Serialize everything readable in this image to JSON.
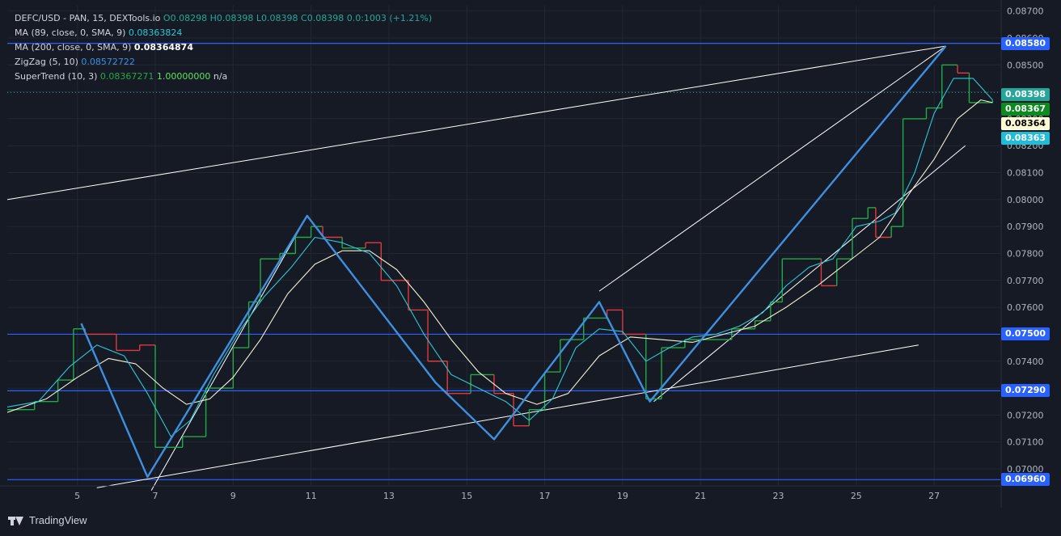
{
  "legend": {
    "symbol": "DEFC/USD - PAN, 15, DEXTools.io",
    "ohlc": {
      "o_label": "O",
      "o": "0.08298",
      "h_label": "H",
      "h": "0.08398",
      "l_label": "L",
      "l": "0.08398",
      "c_label": "C",
      "c": "0.08398",
      "change": "0.0:1003 (+1.21%)"
    },
    "ma89": {
      "label": "MA (89, close, 0, SMA, 9)",
      "value": "0.08363824"
    },
    "ma200": {
      "label": "MA (200, close, 0, SMA, 9)",
      "value": "0.08364874"
    },
    "zigzag": {
      "label": "ZigZag (5, 10)",
      "value": "0.08572722"
    },
    "supertrend": {
      "label": "SuperTrend (10, 3)",
      "value1": "0.08367271",
      "value2": "1.00000000",
      "value3": "n/a"
    }
  },
  "brand": {
    "name": "TradingView"
  },
  "price_tags": [
    {
      "text": "0.08580",
      "price": 0.0858,
      "bg": "#2962ff",
      "fg": "#ffffff"
    },
    {
      "text": "0.08398",
      "price": 0.08398,
      "bg": "#26a69a",
      "fg": "#ffffff"
    },
    {
      "text": "0.08367",
      "price": 0.08367,
      "bg": "#0b8a1f",
      "fg": "#ffffff"
    },
    {
      "text": "0.08364",
      "price": 0.08364,
      "bg": "#fffbd4",
      "fg": "#000000"
    },
    {
      "text": "0.08363",
      "price": 0.08363,
      "bg": "#22bcd6",
      "fg": "#ffffff"
    },
    {
      "text": "0.07500",
      "price": 0.075,
      "bg": "#2962ff",
      "fg": "#ffffff"
    },
    {
      "text": "0.07290",
      "price": 0.0729,
      "bg": "#2962ff",
      "fg": "#ffffff"
    },
    {
      "text": "0.06960",
      "price": 0.0696,
      "bg": "#2962ff",
      "fg": "#ffffff"
    }
  ],
  "colors": {
    "up": "#22ab45",
    "down": "#e03a3e",
    "ma89": "#2ec7d6",
    "ma200": "#f4f1d6",
    "zigzag": "#3d8fe0",
    "hline": "#2962ff",
    "trend": "#ffffff",
    "grid": "#232733",
    "axis_text": "#b2b5be"
  },
  "chart_data": {
    "type": "line",
    "ylim": [
      0.0694,
      0.0872
    ],
    "xlim": [
      3.2,
      28.7
    ],
    "y_ticks": [
      "0.08700",
      "0.08600",
      "0.08500",
      "0.08400",
      "0.08300",
      "0.08200",
      "0.08100",
      "0.08000",
      "0.07900",
      "0.07800",
      "0.07700",
      "0.07600",
      "0.07500",
      "0.07400",
      "0.07300",
      "0.07200",
      "0.07100",
      "0.07000"
    ],
    "x_ticks": [
      5,
      7,
      9,
      11,
      13,
      15,
      17,
      19,
      21,
      23,
      25,
      27
    ],
    "horizontal_levels": [
      0.0858,
      0.075,
      0.0729,
      0.0696
    ],
    "last_price": 0.08398,
    "supertrend_steps": [
      {
        "x": 3.2,
        "y": 0.0722,
        "trend": "up"
      },
      {
        "x": 3.9,
        "y": 0.0725,
        "trend": "up"
      },
      {
        "x": 4.5,
        "y": 0.0733,
        "trend": "up"
      },
      {
        "x": 4.9,
        "y": 0.0752,
        "trend": "up"
      },
      {
        "x": 5.2,
        "y": 0.075,
        "trend": "down"
      },
      {
        "x": 6.0,
        "y": 0.0744,
        "trend": "down"
      },
      {
        "x": 6.6,
        "y": 0.0746,
        "trend": "down"
      },
      {
        "x": 7.0,
        "y": 0.0708,
        "trend": "up"
      },
      {
        "x": 7.7,
        "y": 0.0712,
        "trend": "up"
      },
      {
        "x": 8.3,
        "y": 0.073,
        "trend": "up"
      },
      {
        "x": 9.0,
        "y": 0.0745,
        "trend": "up"
      },
      {
        "x": 9.4,
        "y": 0.0762,
        "trend": "up"
      },
      {
        "x": 9.7,
        "y": 0.0778,
        "trend": "up"
      },
      {
        "x": 10.2,
        "y": 0.078,
        "trend": "up"
      },
      {
        "x": 10.6,
        "y": 0.0786,
        "trend": "up"
      },
      {
        "x": 11.0,
        "y": 0.079,
        "trend": "up"
      },
      {
        "x": 11.3,
        "y": 0.0786,
        "trend": "down"
      },
      {
        "x": 11.8,
        "y": 0.0782,
        "trend": "up"
      },
      {
        "x": 12.4,
        "y": 0.0784,
        "trend": "down"
      },
      {
        "x": 12.8,
        "y": 0.077,
        "trend": "down"
      },
      {
        "x": 13.5,
        "y": 0.0759,
        "trend": "down"
      },
      {
        "x": 14.0,
        "y": 0.074,
        "trend": "down"
      },
      {
        "x": 14.5,
        "y": 0.0728,
        "trend": "down"
      },
      {
        "x": 15.1,
        "y": 0.0735,
        "trend": "up"
      },
      {
        "x": 15.7,
        "y": 0.0728,
        "trend": "down"
      },
      {
        "x": 16.2,
        "y": 0.0716,
        "trend": "down"
      },
      {
        "x": 16.6,
        "y": 0.0722,
        "trend": "up"
      },
      {
        "x": 17.0,
        "y": 0.0736,
        "trend": "up"
      },
      {
        "x": 17.4,
        "y": 0.0748,
        "trend": "up"
      },
      {
        "x": 18.0,
        "y": 0.0756,
        "trend": "up"
      },
      {
        "x": 18.6,
        "y": 0.0759,
        "trend": "down"
      },
      {
        "x": 19.0,
        "y": 0.075,
        "trend": "down"
      },
      {
        "x": 19.6,
        "y": 0.0726,
        "trend": "up"
      },
      {
        "x": 20.0,
        "y": 0.0745,
        "trend": "up"
      },
      {
        "x": 20.6,
        "y": 0.0748,
        "trend": "up"
      },
      {
        "x": 21.1,
        "y": 0.0748,
        "trend": "up"
      },
      {
        "x": 21.8,
        "y": 0.0752,
        "trend": "up"
      },
      {
        "x": 22.4,
        "y": 0.0755,
        "trend": "up"
      },
      {
        "x": 22.8,
        "y": 0.0762,
        "trend": "up"
      },
      {
        "x": 23.1,
        "y": 0.0778,
        "trend": "up"
      },
      {
        "x": 23.6,
        "y": 0.0778,
        "trend": "up"
      },
      {
        "x": 24.1,
        "y": 0.0768,
        "trend": "down"
      },
      {
        "x": 24.5,
        "y": 0.0778,
        "trend": "up"
      },
      {
        "x": 24.9,
        "y": 0.0793,
        "trend": "up"
      },
      {
        "x": 25.3,
        "y": 0.0797,
        "trend": "up"
      },
      {
        "x": 25.5,
        "y": 0.0786,
        "trend": "down"
      },
      {
        "x": 25.9,
        "y": 0.079,
        "trend": "up"
      },
      {
        "x": 26.2,
        "y": 0.083,
        "trend": "up"
      },
      {
        "x": 26.8,
        "y": 0.0834,
        "trend": "up"
      },
      {
        "x": 27.2,
        "y": 0.085,
        "trend": "up"
      },
      {
        "x": 27.6,
        "y": 0.0847,
        "trend": "down"
      },
      {
        "x": 27.9,
        "y": 0.0836,
        "trend": "up"
      },
      {
        "x": 28.5,
        "y": 0.0837,
        "trend": "up"
      }
    ],
    "ma89_points": [
      {
        "x": 3.2,
        "y": 0.0723
      },
      {
        "x": 4.0,
        "y": 0.0725
      },
      {
        "x": 4.8,
        "y": 0.0738
      },
      {
        "x": 5.5,
        "y": 0.0746
      },
      {
        "x": 6.2,
        "y": 0.0742
      },
      {
        "x": 6.8,
        "y": 0.0728
      },
      {
        "x": 7.4,
        "y": 0.0712
      },
      {
        "x": 7.9,
        "y": 0.0718
      },
      {
        "x": 8.5,
        "y": 0.0735
      },
      {
        "x": 9.2,
        "y": 0.0752
      },
      {
        "x": 9.8,
        "y": 0.0764
      },
      {
        "x": 10.5,
        "y": 0.0775
      },
      {
        "x": 11.1,
        "y": 0.0786
      },
      {
        "x": 11.8,
        "y": 0.0784
      },
      {
        "x": 12.5,
        "y": 0.078
      },
      {
        "x": 13.2,
        "y": 0.0768
      },
      {
        "x": 13.9,
        "y": 0.075
      },
      {
        "x": 14.6,
        "y": 0.0735
      },
      {
        "x": 15.3,
        "y": 0.073
      },
      {
        "x": 16.0,
        "y": 0.0725
      },
      {
        "x": 16.6,
        "y": 0.0718
      },
      {
        "x": 17.2,
        "y": 0.0726
      },
      {
        "x": 17.8,
        "y": 0.0745
      },
      {
        "x": 18.4,
        "y": 0.0752
      },
      {
        "x": 19.0,
        "y": 0.0751
      },
      {
        "x": 19.6,
        "y": 0.074
      },
      {
        "x": 20.2,
        "y": 0.0745
      },
      {
        "x": 20.8,
        "y": 0.0749
      },
      {
        "x": 21.4,
        "y": 0.075
      },
      {
        "x": 22.0,
        "y": 0.0753
      },
      {
        "x": 22.6,
        "y": 0.0758
      },
      {
        "x": 23.2,
        "y": 0.0768
      },
      {
        "x": 23.8,
        "y": 0.0775
      },
      {
        "x": 24.4,
        "y": 0.0778
      },
      {
        "x": 25.0,
        "y": 0.079
      },
      {
        "x": 25.6,
        "y": 0.0792
      },
      {
        "x": 26.0,
        "y": 0.0795
      },
      {
        "x": 26.5,
        "y": 0.081
      },
      {
        "x": 27.0,
        "y": 0.0832
      },
      {
        "x": 27.5,
        "y": 0.0845
      },
      {
        "x": 28.0,
        "y": 0.0845
      },
      {
        "x": 28.5,
        "y": 0.0837
      }
    ],
    "ma200_points": [
      {
        "x": 3.2,
        "y": 0.0721
      },
      {
        "x": 4.2,
        "y": 0.0726
      },
      {
        "x": 5.0,
        "y": 0.0734
      },
      {
        "x": 5.8,
        "y": 0.0741
      },
      {
        "x": 6.5,
        "y": 0.0739
      },
      {
        "x": 7.2,
        "y": 0.073
      },
      {
        "x": 7.8,
        "y": 0.0724
      },
      {
        "x": 8.4,
        "y": 0.0726
      },
      {
        "x": 9.0,
        "y": 0.0734
      },
      {
        "x": 9.7,
        "y": 0.0748
      },
      {
        "x": 10.4,
        "y": 0.0765
      },
      {
        "x": 11.1,
        "y": 0.0776
      },
      {
        "x": 11.8,
        "y": 0.0781
      },
      {
        "x": 12.5,
        "y": 0.0781
      },
      {
        "x": 13.2,
        "y": 0.0774
      },
      {
        "x": 13.9,
        "y": 0.0762
      },
      {
        "x": 14.6,
        "y": 0.0748
      },
      {
        "x": 15.3,
        "y": 0.0736
      },
      {
        "x": 16.0,
        "y": 0.0728
      },
      {
        "x": 16.8,
        "y": 0.0724
      },
      {
        "x": 17.6,
        "y": 0.0728
      },
      {
        "x": 18.4,
        "y": 0.0742
      },
      {
        "x": 19.2,
        "y": 0.0749
      },
      {
        "x": 20.0,
        "y": 0.0748
      },
      {
        "x": 20.8,
        "y": 0.0747
      },
      {
        "x": 21.6,
        "y": 0.075
      },
      {
        "x": 22.4,
        "y": 0.0753
      },
      {
        "x": 23.2,
        "y": 0.076
      },
      {
        "x": 24.0,
        "y": 0.0768
      },
      {
        "x": 24.8,
        "y": 0.0777
      },
      {
        "x": 25.6,
        "y": 0.0786
      },
      {
        "x": 26.4,
        "y": 0.0803
      },
      {
        "x": 27.0,
        "y": 0.0815
      },
      {
        "x": 27.6,
        "y": 0.083
      },
      {
        "x": 28.2,
        "y": 0.0837
      },
      {
        "x": 28.5,
        "y": 0.0836
      }
    ],
    "zigzag_points": [
      {
        "x": 5.1,
        "y": 0.0754
      },
      {
        "x": 6.8,
        "y": 0.0697
      },
      {
        "x": 10.9,
        "y": 0.0794
      },
      {
        "x": 14.2,
        "y": 0.0732
      },
      {
        "x": 15.7,
        "y": 0.0711
      },
      {
        "x": 18.4,
        "y": 0.0762
      },
      {
        "x": 19.7,
        "y": 0.0725
      },
      {
        "x": 27.3,
        "y": 0.0857
      }
    ],
    "trend_lines": [
      {
        "x1": 3.2,
        "y1": 0.08,
        "x2": 27.3,
        "y2": 0.0857
      },
      {
        "x1": 5.5,
        "y1": 0.0693,
        "x2": 26.6,
        "y2": 0.0746
      },
      {
        "x1": 6.9,
        "y1": 0.0692,
        "x2": 10.9,
        "y2": 0.0794
      },
      {
        "x1": 18.4,
        "y1": 0.0766,
        "x2": 27.3,
        "y2": 0.0857
      },
      {
        "x1": 19.8,
        "y1": 0.0725,
        "x2": 27.8,
        "y2": 0.082
      }
    ]
  }
}
